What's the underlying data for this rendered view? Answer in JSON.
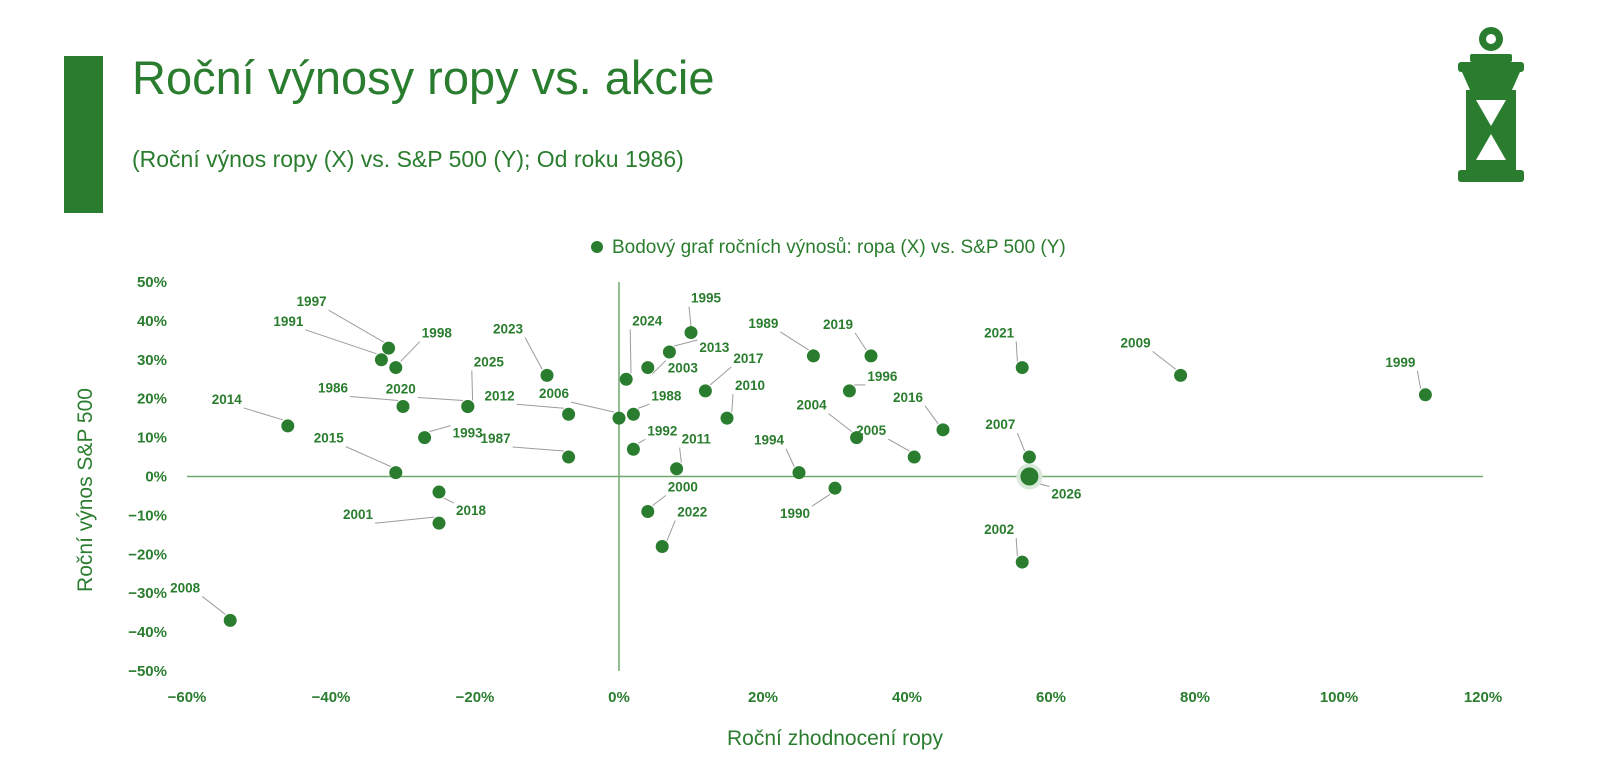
{
  "header": {
    "title": "Roční výnosy ropy vs. akcie",
    "subtitle": "(Roční výnos ropy (X) vs. S&P 500 (Y); Od roku 1986)"
  },
  "logo": {
    "icon": "lantern-icon"
  },
  "colors": {
    "accent": "#2a7d2e",
    "point": "#2a7d2e",
    "axis": "#6fa86f",
    "leader": "#9c9c9c"
  },
  "chart_data": {
    "type": "scatter",
    "legend": "Bodový graf ročních výnosů: ropa (X) vs. S&P 500 (Y)",
    "legend_position": "top-center",
    "xlabel": "Roční zhodnocení ropy",
    "ylabel": "Roční výnos S&P 500",
    "xlim": [
      -60,
      120
    ],
    "ylim": [
      -50,
      50
    ],
    "x_ticks": [
      "−60%",
      "−40%",
      "−20%",
      "0%",
      "20%",
      "40%",
      "60%",
      "80%",
      "100%",
      "120%"
    ],
    "y_ticks": [
      "50%",
      "40%",
      "30%",
      "20%",
      "10%",
      "0%",
      "−10%",
      "−20%",
      "−30%",
      "−40%",
      "−50%"
    ],
    "grid": false,
    "points": [
      {
        "label": "1986",
        "x": -30,
        "y": 18
      },
      {
        "label": "1987",
        "x": -7,
        "y": 5
      },
      {
        "label": "1988",
        "x": 2,
        "y": 16
      },
      {
        "label": "1989",
        "x": 27,
        "y": 31
      },
      {
        "label": "1990",
        "x": 30,
        "y": -3
      },
      {
        "label": "1991",
        "x": -33,
        "y": 30
      },
      {
        "label": "1992",
        "x": 2,
        "y": 7
      },
      {
        "label": "1993",
        "x": -27,
        "y": 10
      },
      {
        "label": "1994",
        "x": 25,
        "y": 1
      },
      {
        "label": "1995",
        "x": 10,
        "y": 37
      },
      {
        "label": "1996",
        "x": 32,
        "y": 22
      },
      {
        "label": "1997",
        "x": -32,
        "y": 33
      },
      {
        "label": "1998",
        "x": -31,
        "y": 28
      },
      {
        "label": "1999",
        "x": 112,
        "y": 21
      },
      {
        "label": "2000",
        "x": 4,
        "y": -9
      },
      {
        "label": "2001",
        "x": -25,
        "y": -12
      },
      {
        "label": "2002",
        "x": 56,
        "y": -22
      },
      {
        "label": "2003",
        "x": 4,
        "y": 28
      },
      {
        "label": "2004",
        "x": 33,
        "y": 10
      },
      {
        "label": "2005",
        "x": 41,
        "y": 5
      },
      {
        "label": "2006",
        "x": 0,
        "y": 15
      },
      {
        "label": "2007",
        "x": 57,
        "y": 5
      },
      {
        "label": "2008",
        "x": -54,
        "y": -37
      },
      {
        "label": "2009",
        "x": 78,
        "y": 26
      },
      {
        "label": "2010",
        "x": 15,
        "y": 15
      },
      {
        "label": "2011",
        "x": 8,
        "y": 2
      },
      {
        "label": "2012",
        "x": -7,
        "y": 16
      },
      {
        "label": "2013",
        "x": 7,
        "y": 32
      },
      {
        "label": "2014",
        "x": -46,
        "y": 13
      },
      {
        "label": "2015",
        "x": -31,
        "y": 1
      },
      {
        "label": "2016",
        "x": 45,
        "y": 12
      },
      {
        "label": "2017",
        "x": 12,
        "y": 22
      },
      {
        "label": "2018",
        "x": -25,
        "y": -4
      },
      {
        "label": "2019",
        "x": 35,
        "y": 31
      },
      {
        "label": "2020",
        "x": -21,
        "y": 18
      },
      {
        "label": "2021",
        "x": 56,
        "y": 28
      },
      {
        "label": "2022",
        "x": 6,
        "y": -18
      },
      {
        "label": "2023",
        "x": -10,
        "y": 26
      },
      {
        "label": "2024",
        "x": 1,
        "y": 25
      },
      {
        "label": "2025",
        "x": -21,
        "y": 18
      },
      {
        "label": "2026",
        "x": 57,
        "y": 0,
        "highlight": true
      }
    ]
  }
}
